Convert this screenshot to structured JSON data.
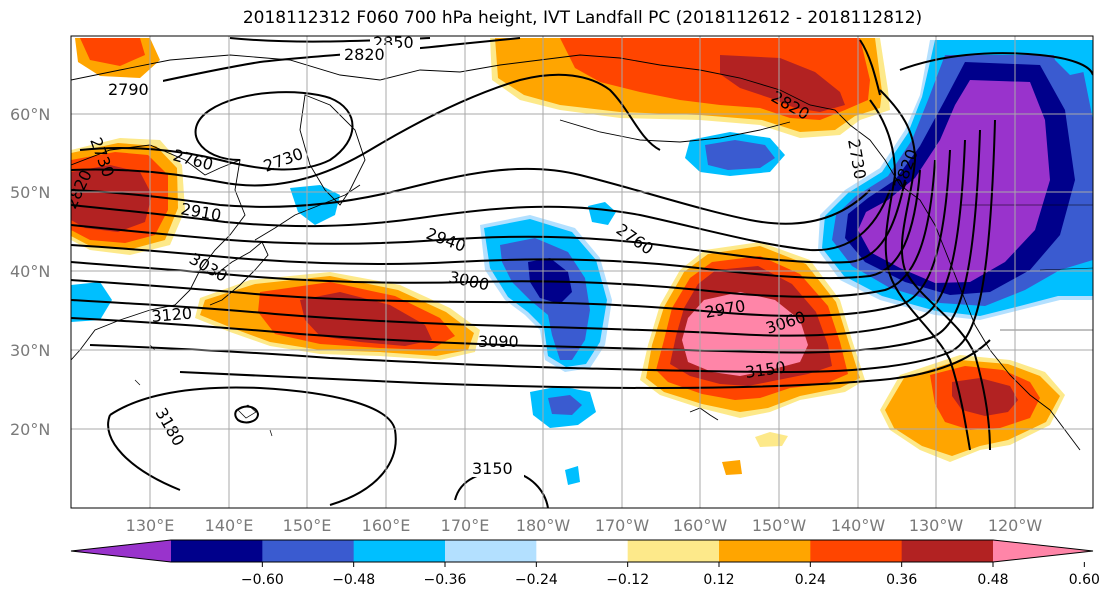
{
  "title": "2018112312 F060 700 hPa height, IVT Landfall PC (2018112612 - 2018112812)",
  "lat_labels": [
    "60°N",
    "50°N",
    "40°N",
    "30°N",
    "20°N"
  ],
  "lon_labels": [
    "130°E",
    "140°E",
    "150°E",
    "160°E",
    "170°E",
    "180°W",
    "170°W",
    "160°W",
    "150°W",
    "140°W",
    "130°W",
    "120°W"
  ],
  "contour_labels": [
    "2850",
    "2820",
    "2790",
    "2730",
    "2760",
    "2730",
    "2820",
    "2910",
    "2940",
    "2760",
    "3030",
    "3000",
    "3120",
    "3090",
    "2970",
    "3060",
    "3150",
    "3180",
    "3150",
    "2730",
    "2820",
    "2820"
  ],
  "colorbar": {
    "colors": [
      "#9933cc",
      "#00008b",
      "#3a5bd0",
      "#00bfff",
      "#b3e0ff",
      "#ffffff",
      "#fde98a",
      "#ffa500",
      "#ff4500",
      "#b22222",
      "#ff85a8"
    ],
    "tick_labels": [
      "−0.60",
      "−0.48",
      "−0.36",
      "−0.24",
      "−0.12",
      "0.12",
      "0.24",
      "0.36",
      "0.48",
      "0.60"
    ]
  },
  "fill_colors": {
    "pink": "#ff85a8",
    "darkred": "#b22222",
    "red": "#ff4500",
    "orange": "#ffa500",
    "yellow": "#fde98a",
    "purple": "#9933cc",
    "navy": "#00008b",
    "blue": "#3a5bd0",
    "cyan": "#00bfff",
    "lightblue": "#b3e0ff"
  }
}
